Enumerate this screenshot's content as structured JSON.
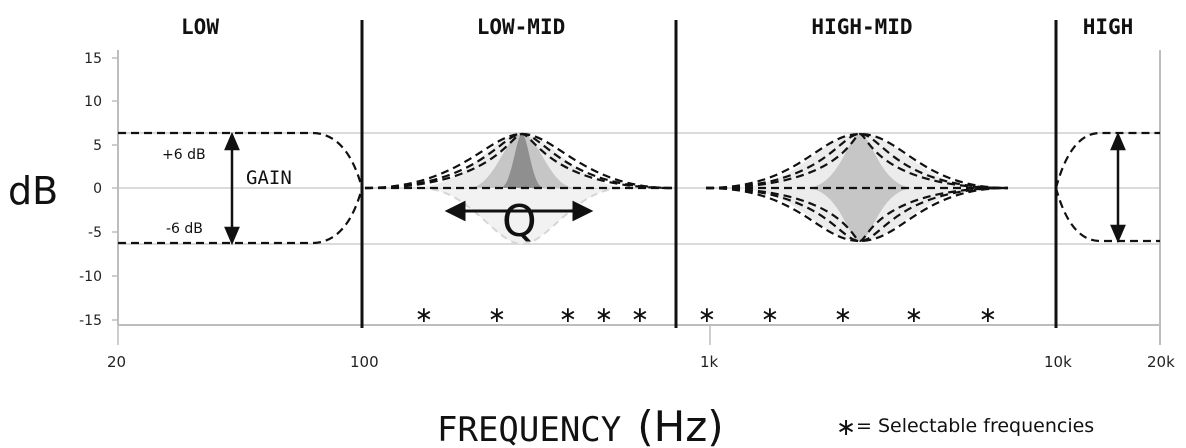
{
  "bands": {
    "low": "LOW",
    "low_mid": "LOW-MID",
    "high_mid": "HIGH-MID",
    "high": "HIGH"
  },
  "y_axis": {
    "label": "dB",
    "ticks": [
      "15",
      "10",
      "5",
      "0",
      "-5",
      "-10",
      "-15"
    ]
  },
  "x_axis": {
    "label": "FREQUENCY",
    "unit": "(Hz)",
    "ticks": [
      "20",
      "100",
      "1k",
      "10k",
      "20k"
    ]
  },
  "annotations": {
    "plus_gain": "+6 dB",
    "minus_gain": "-6 dB",
    "gain": "GAIN",
    "q": "Q"
  },
  "legend": {
    "symbol": "∗",
    "text": "= Selectable frequencies"
  },
  "colors": {
    "ink": "#111111",
    "grid": "#cfcfcf",
    "axis": "#bdbdbd",
    "fill_light": "#ececec",
    "fill_mid": "#c6c6c6",
    "fill_dark": "#8f8f8f"
  }
}
